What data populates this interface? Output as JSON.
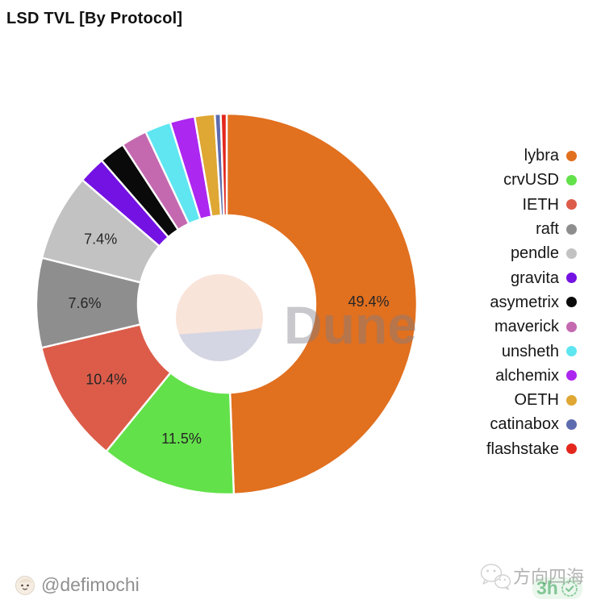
{
  "title": "LSD TVL [By Protocol]",
  "watermark": {
    "brand": "Dune",
    "logo_top_color": "#F9E4DA",
    "logo_bottom_color": "#D5D6E3",
    "text_color": "#7D7D87"
  },
  "chart_data": {
    "type": "pie",
    "donut": true,
    "title": "LSD TVL [By Protocol]",
    "legend_position": "right",
    "start_angle_deg": 0,
    "direction": "clockwise",
    "series": [
      {
        "name": "lybra",
        "value": 49.4,
        "label": "49.4%",
        "color": "#E1701F"
      },
      {
        "name": "crvUSD",
        "value": 11.5,
        "label": "11.5%",
        "color": "#63E14A"
      },
      {
        "name": "IETH",
        "value": 10.4,
        "label": "10.4%",
        "color": "#DC5C49"
      },
      {
        "name": "raft",
        "value": 7.6,
        "label": "7.6%",
        "color": "#8E8E8E"
      },
      {
        "name": "pendle",
        "value": 7.4,
        "label": "7.4%",
        "color": "#C2C2C2"
      },
      {
        "name": "gravita",
        "value": 2.3,
        "label": null,
        "color": "#7412E3"
      },
      {
        "name": "asymetrix",
        "value": 2.2,
        "label": null,
        "color": "#0A0A0A"
      },
      {
        "name": "maverick",
        "value": 2.2,
        "label": null,
        "color": "#C469B0"
      },
      {
        "name": "unsheth",
        "value": 2.2,
        "label": null,
        "color": "#5FE6F0"
      },
      {
        "name": "alchemix",
        "value": 2.1,
        "label": null,
        "color": "#AC27F0"
      },
      {
        "name": "OETH",
        "value": 1.7,
        "label": null,
        "color": "#DFA733"
      },
      {
        "name": "catinabox",
        "value": 0.5,
        "label": null,
        "color": "#5D6CAE"
      },
      {
        "name": "flashstake",
        "value": 0.5,
        "label": null,
        "color": "#E3271D"
      }
    ]
  },
  "footer": {
    "author_handle": "@defimochi",
    "channel_name": "方向四海",
    "stamp_text": "3h"
  }
}
